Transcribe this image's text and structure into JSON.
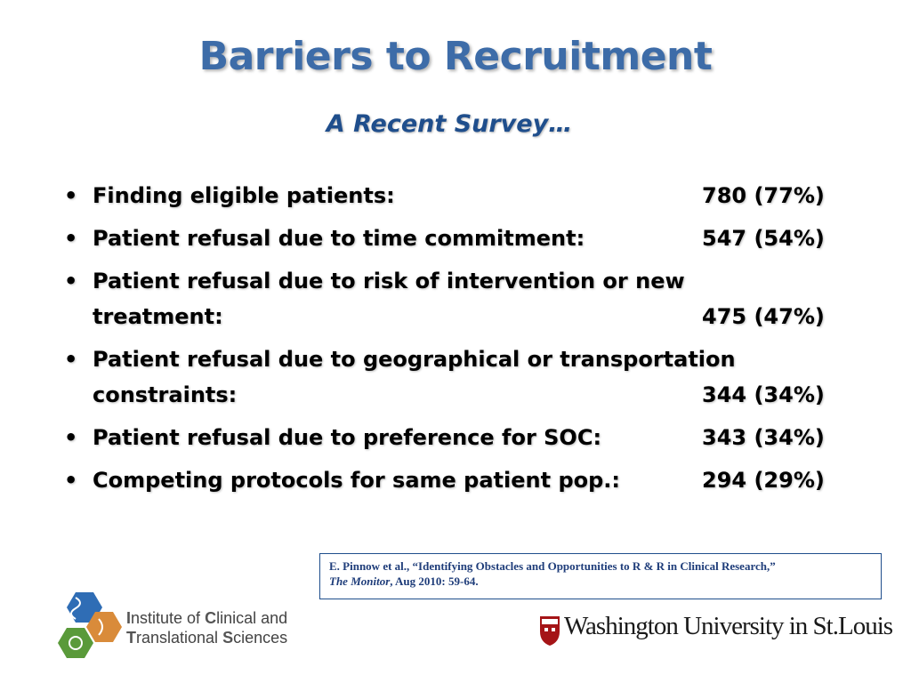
{
  "slide": {
    "title": "Barriers to Recruitment",
    "subtitle": "A Recent Survey…"
  },
  "bullets": [
    {
      "line1": "Finding eligible patients:",
      "line2": "",
      "value": "780 (77%)"
    },
    {
      "line1": "Patient refusal due to time commitment:",
      "line2": "",
      "value": "547 (54%)"
    },
    {
      "line1": "Patient refusal due to risk of intervention or new",
      "line2": "treatment:",
      "value": "475 (47%)"
    },
    {
      "line1": "Patient refusal due to geographical or transportation",
      "line2": "constraints:",
      "value": "344 (34%)"
    },
    {
      "line1": "Patient refusal due to preference for SOC:",
      "line2": "",
      "value": "343 (34%)"
    },
    {
      "line1": "Competing protocols for same patient pop.:",
      "line2": "",
      "value": "294 (29%)"
    }
  ],
  "citation": {
    "text": "E. Pinnow et al., “Identifying Obstacles and Opportunities to R & R in Clinical Research,”",
    "journal": "The Monitor",
    "details": ", Aug 2010: 59-64."
  },
  "footer": {
    "icts": {
      "line1": [
        {
          "initial": "I",
          "rest": "nstitute of "
        },
        {
          "initial": "C",
          "rest": "linical and"
        }
      ],
      "line2": [
        {
          "initial": "T",
          "rest": "ranslational "
        },
        {
          "initial": "S",
          "rest": "ciences"
        }
      ]
    },
    "wu_name": "Washington University in St.Louis"
  },
  "colors": {
    "title": "#3d6ca8",
    "subtitle": "#1f4e8c",
    "citation_border": "#1f4e8c",
    "wu_red": "#a51417",
    "icts_blue": "#2f6db5",
    "icts_green": "#5a9a3a",
    "icts_orange": "#d98b3a"
  },
  "icons": {
    "icts_logo": "icts-hexagon-logo-icon",
    "wu_shield": "washu-shield-icon"
  }
}
